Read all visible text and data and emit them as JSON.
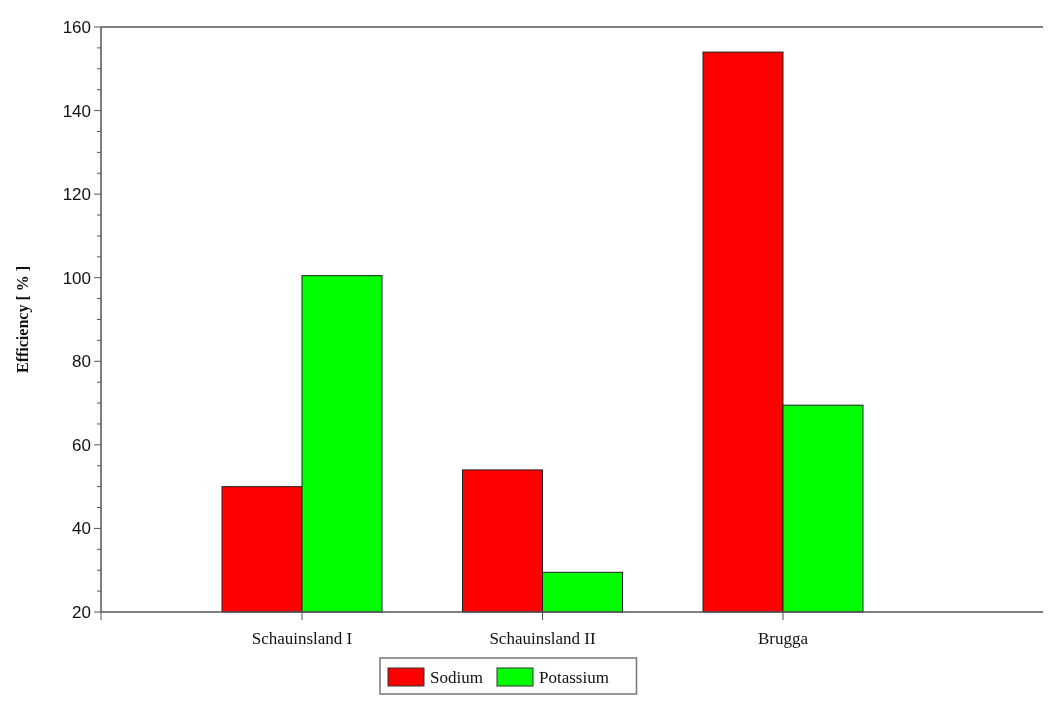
{
  "chart_data": {
    "type": "bar",
    "ylabel": "Efficiency [ % ]",
    "categories": [
      "Schauinsland I",
      "Schauinsland II",
      "Brugga"
    ],
    "series": [
      {
        "name": "Sodium",
        "color": "#ff0000",
        "values": [
          50,
          54,
          154
        ]
      },
      {
        "name": "Potassium",
        "color": "#00ff00",
        "values": [
          100.5,
          29.5,
          69.5
        ]
      }
    ],
    "ylim": [
      20,
      160
    ],
    "yticks": [
      20,
      {
        "value": 25,
        "label": null
      },
      {
        "value": 30,
        "label": null
      },
      {
        "value": 35,
        "label": null
      },
      40,
      {
        "value": 45,
        "label": null
      },
      {
        "value": 50,
        "label": null
      },
      {
        "value": 55,
        "label": null
      },
      60,
      {
        "value": 65,
        "label": null
      },
      {
        "value": 70,
        "label": null
      },
      {
        "value": 75,
        "label": null
      },
      80,
      {
        "value": 85,
        "label": null
      },
      {
        "value": 90,
        "label": null
      },
      {
        "value": 95,
        "label": null
      },
      100,
      {
        "value": 105,
        "label": null
      },
      {
        "value": 110,
        "label": null
      },
      {
        "value": 115,
        "label": null
      },
      120,
      {
        "value": 125,
        "label": null
      },
      {
        "value": 130,
        "label": null
      },
      {
        "value": 135,
        "label": null
      },
      140,
      {
        "value": 145,
        "label": null
      },
      {
        "value": 150,
        "label": null
      },
      {
        "value": 155,
        "label": null
      },
      160
    ],
    "grid": false,
    "legend": "bottom"
  }
}
